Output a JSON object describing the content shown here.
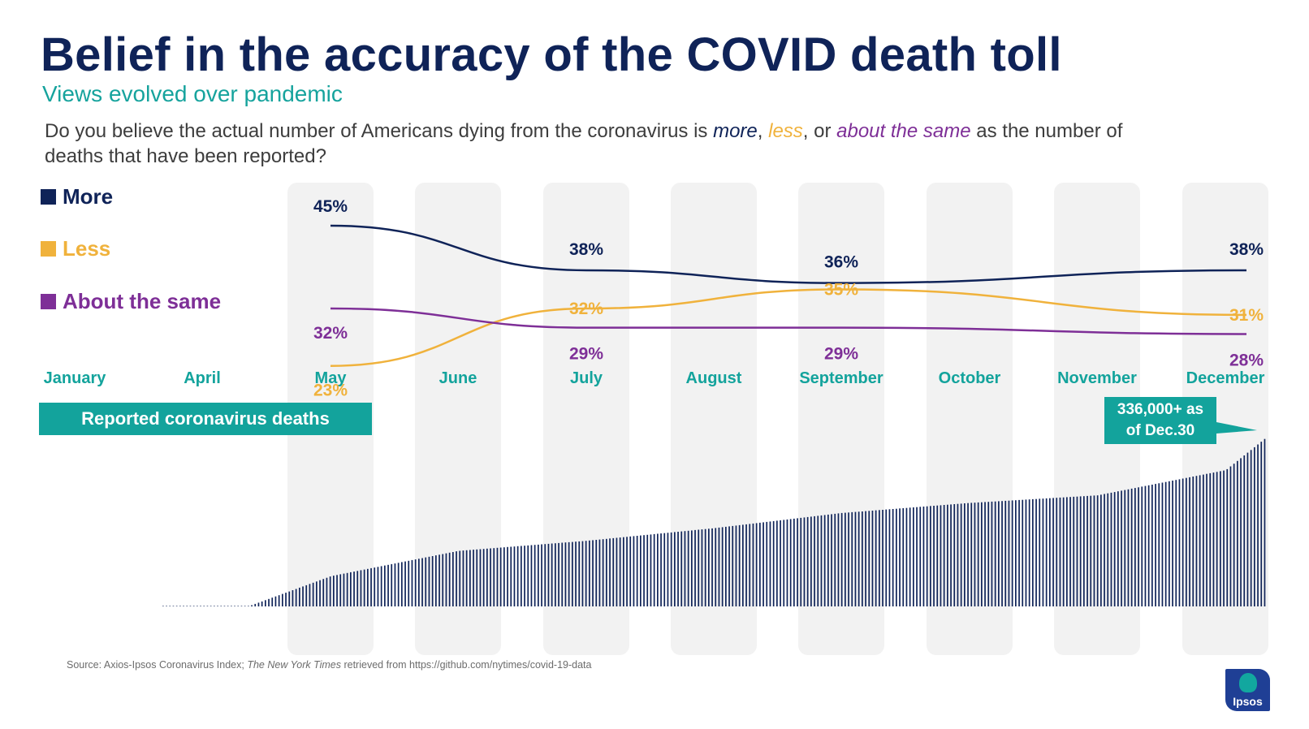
{
  "title": "Belief in the accuracy of the COVID death toll",
  "subtitle": "Views evolved over pandemic",
  "question": {
    "before": "Do you believe the actual number of Americans dying from the coronavirus is ",
    "more": "more",
    "comma1": ", ",
    "less": "less",
    "comma2": ", or ",
    "same": "about the same",
    "after": " as the number of deaths that have been reported?"
  },
  "legend": [
    {
      "label": "More",
      "color": "#0f2358"
    },
    {
      "label": "Less",
      "color": "#f0b23c"
    },
    {
      "label": "About the same",
      "color": "#7e2f97"
    }
  ],
  "deaths_banner": "Reported coronavirus deaths",
  "callout": {
    "line1": "336,000+ as",
    "line2": "of Dec.30"
  },
  "source": {
    "prefix": "Source: Axios-Ipsos Coronavirus Index; ",
    "italic": "The New York Times",
    "suffix": " retrieved from https://github.com/nytimes/covid-19-data"
  },
  "logo": {
    "label": "Ipsos"
  },
  "chart_data": {
    "type": "line",
    "title": "Belief in the accuracy of the COVID death toll",
    "months": [
      "January",
      "April",
      "May",
      "June",
      "July",
      "August",
      "September",
      "October",
      "November",
      "December"
    ],
    "highlighted_months": [
      "May",
      "June",
      "July",
      "August",
      "September",
      "October",
      "November",
      "December"
    ],
    "x": [
      "May",
      "July",
      "September",
      "December"
    ],
    "series": [
      {
        "name": "More",
        "color": "#0f2358",
        "values": [
          45,
          38,
          36,
          38
        ],
        "labels": [
          "45%",
          "38%",
          "36%",
          "38%"
        ]
      },
      {
        "name": "Less",
        "color": "#f0b23c",
        "values": [
          23,
          32,
          35,
          31
        ],
        "labels": [
          "23%",
          "32%",
          "35%",
          "31%"
        ]
      },
      {
        "name": "About the same",
        "color": "#7e2f97",
        "values": [
          32,
          29,
          29,
          28
        ],
        "labels": [
          "32%",
          "29%",
          "29%",
          "28%"
        ]
      }
    ],
    "deaths": {
      "type": "bar",
      "label": "Reported coronavirus deaths",
      "final_value": 336000,
      "final_date": "Dec.30",
      "cumulative_by_month_thousands": {
        "April": 0,
        "May": 60,
        "June": 110,
        "July": 130,
        "August": 155,
        "September": 185,
        "October": 205,
        "November": 220,
        "December": 270,
        "Dec.30": 336
      }
    }
  }
}
